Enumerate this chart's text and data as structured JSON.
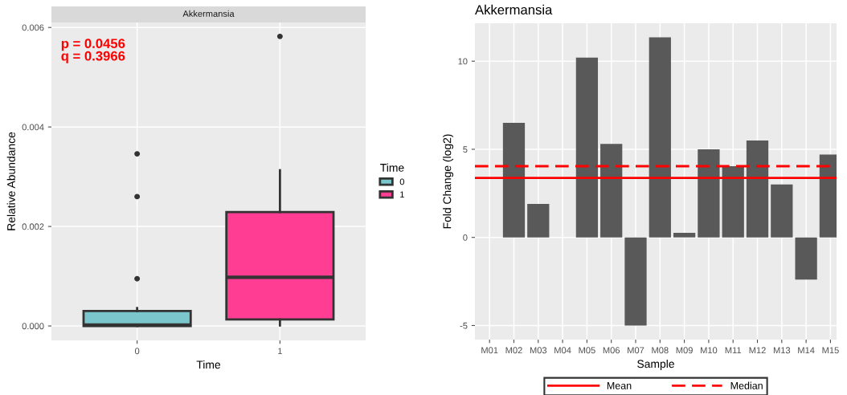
{
  "chart_data": [
    {
      "type": "box",
      "title": "Akkermansia",
      "xlabel": "Time",
      "ylabel": "Relative Abundance",
      "legend_title": "Time",
      "categories": [
        "0",
        "1"
      ],
      "series": [
        {
          "name": "0",
          "color": "#7ac6cc",
          "boxes": [
            {
              "low": 0.0,
              "q1": 0.0,
              "median": 2e-05,
              "q3": 0.0003,
              "high": 0.00036,
              "outliers": [
                0.00095,
                0.0026,
                0.00346
              ]
            },
            null
          ]
        },
        {
          "name": "1",
          "color": "#ff3e93",
          "boxes": [
            null,
            {
              "low": 1e-05,
              "q1": 0.00013,
              "median": 0.00098,
              "q3": 0.00229,
              "high": 0.00313,
              "outliers": [
                0.00582
              ]
            }
          ]
        }
      ],
      "ylim": [
        -0.00029,
        0.0061
      ],
      "yticks": [
        {
          "value": 0,
          "label": "0.000"
        },
        {
          "value": 0.002,
          "label": "0.002"
        },
        {
          "value": 0.004,
          "label": "0.004"
        },
        {
          "value": 0.006,
          "label": "0.006"
        }
      ],
      "annotations": [
        "p = 0.0456\nq = 0.3966"
      ],
      "grid": true,
      "legend": "right"
    },
    {
      "type": "bar",
      "title": "Akkermansia",
      "xlabel": "Sample",
      "ylabel": "Fold Change (log2)",
      "categories": [
        "M01",
        "M02",
        "M03",
        "M04",
        "M05",
        "M06",
        "M07",
        "M08",
        "M09",
        "M10",
        "M11",
        "M12",
        "M13",
        "M14",
        "M15"
      ],
      "values": [
        0,
        6.5,
        1.9,
        0,
        10.2,
        5.3,
        -5.0,
        11.35,
        0.26,
        5.0,
        4.04,
        5.5,
        3.0,
        -2.4,
        4.7
      ],
      "color": "#595959",
      "ylim": [
        -5.8,
        12.15
      ],
      "yticks": [
        -5,
        0,
        5,
        10
      ],
      "ref_lines": [
        {
          "axis": "y",
          "value": 3.37,
          "label": "Mean",
          "color": "#ff0000",
          "line_style": "solid"
        },
        {
          "axis": "y",
          "value": 4.04,
          "label": "Median",
          "color": "#ff0000",
          "line_style": "dashed"
        }
      ],
      "grid": true,
      "legend": "bottom"
    }
  ]
}
